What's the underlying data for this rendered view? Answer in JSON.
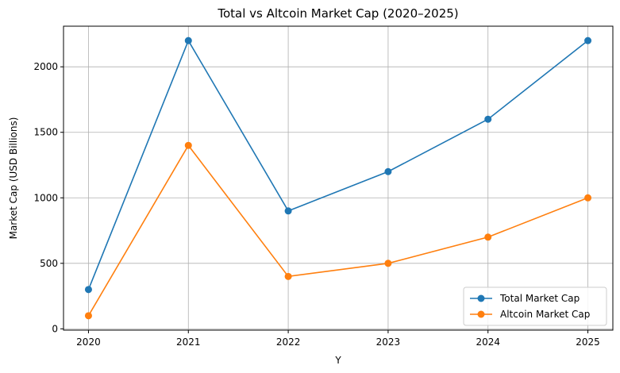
{
  "chart_data": {
    "type": "line",
    "title": "Total vs Altcoin Market Cap (2020–2025)",
    "xlabel": "Y",
    "ylabel": "Market Cap (USD Billions)",
    "x": [
      "2020",
      "2021",
      "2022",
      "2023",
      "2024",
      "2025"
    ],
    "xlim": [
      -0.25,
      5.25
    ],
    "ylim": [
      -10,
      2310
    ],
    "yticks": [
      0,
      500,
      1000,
      1500,
      2000
    ],
    "grid": true,
    "legend_position": "lower-right",
    "series": [
      {
        "name": "Total Market Cap",
        "color": "#1f77b4",
        "values": [
          300,
          2200,
          900,
          1200,
          1600,
          2200
        ]
      },
      {
        "name": "Altcoin Market Cap",
        "color": "#ff7f0e",
        "values": [
          100,
          1400,
          400,
          500,
          700,
          1000
        ]
      }
    ]
  }
}
